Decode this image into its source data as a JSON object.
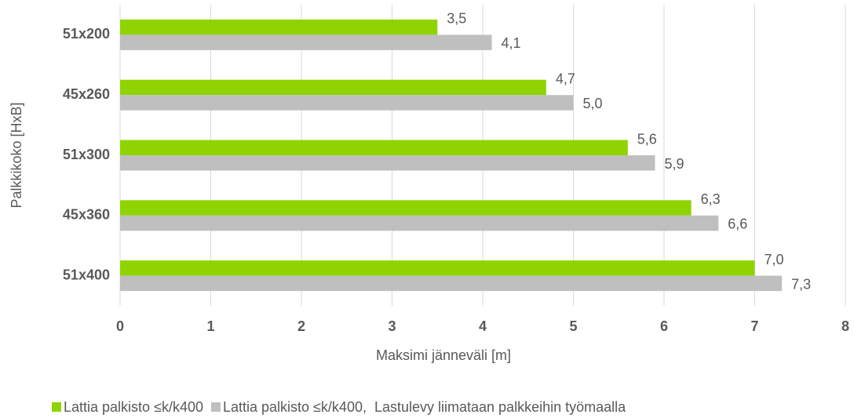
{
  "chart_data": {
    "type": "hbar",
    "categories": [
      "51x200",
      "45x260",
      "51x300",
      "45x360",
      "51x400"
    ],
    "series": [
      {
        "name": "Lattia palkisto ≤k/k400",
        "color": "#8fd400",
        "values": [
          3.5,
          4.7,
          5.6,
          6.3,
          7.0
        ],
        "value_labels": [
          "3,5",
          "4,7",
          "5,6",
          "6,3",
          "7,0"
        ]
      },
      {
        "name": "Lattia palkisto ≤k/k400,  Lastulevy liimataan palkkeihin työmaalla",
        "color": "#bfbfbf",
        "values": [
          4.1,
          5.0,
          5.9,
          6.6,
          7.3
        ],
        "value_labels": [
          "4,1",
          "5,0",
          "5,9",
          "6,6",
          "7,3"
        ]
      }
    ],
    "xlabel": "Maksimi jänneväli [m]",
    "ylabel": "Palkkikoko [HxB]",
    "xlim": [
      0,
      8
    ],
    "xticks": [
      0,
      1,
      2,
      3,
      4,
      5,
      6,
      7,
      8
    ],
    "grid": true,
    "legend": "bottom"
  }
}
